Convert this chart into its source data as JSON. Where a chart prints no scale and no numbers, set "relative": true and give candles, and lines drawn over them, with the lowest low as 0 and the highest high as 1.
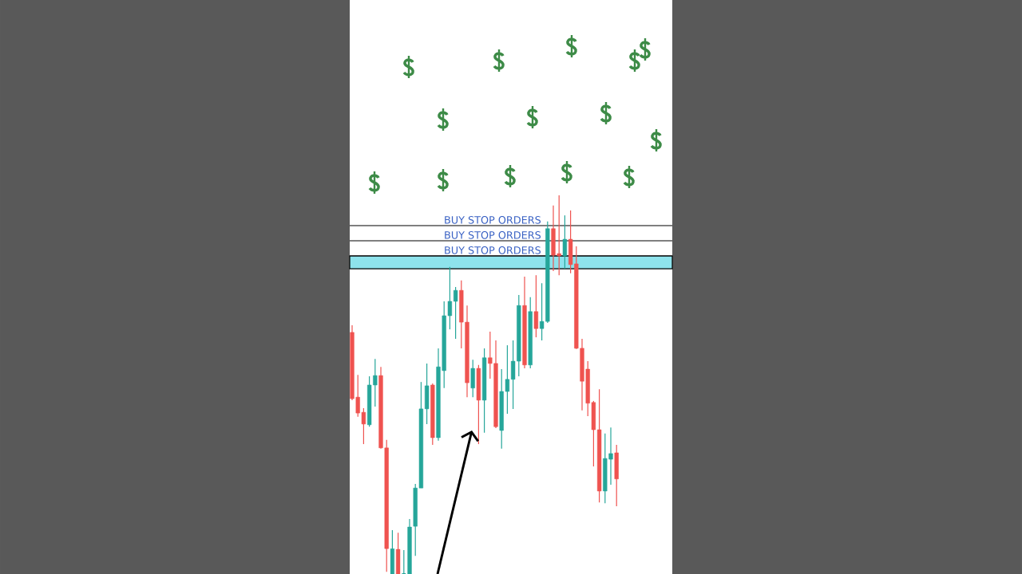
{
  "chart_data": {
    "type": "candlestick",
    "relative": true,
    "categories": [
      null,
      null,
      null,
      null,
      null,
      null,
      null,
      null,
      null,
      null,
      null,
      null,
      null,
      null,
      null,
      null,
      null,
      null,
      null,
      null,
      null,
      null,
      null,
      null,
      null,
      null,
      null,
      null,
      null,
      null,
      null,
      null,
      null,
      null,
      null,
      null,
      null,
      null,
      null,
      null,
      null,
      null,
      null,
      null,
      null,
      null,
      null
    ],
    "ohlc": [
      [
        0.638,
        0.657,
        0.459,
        0.463
      ],
      [
        0.467,
        0.526,
        0.415,
        0.425
      ],
      [
        0.427,
        0.438,
        0.343,
        0.396
      ],
      [
        0.394,
        0.522,
        0.389,
        0.499
      ],
      [
        0.499,
        0.568,
        0.442,
        0.524
      ],
      [
        0.524,
        0.547,
        0.331,
        0.333
      ],
      [
        0.333,
        0.354,
        0.006,
        0.067
      ],
      [
        0,
        0.116,
        0,
        0.067
      ],
      [
        0.065,
        0.109,
        0,
        0
      ],
      [
        0,
        0.063,
        0,
        0
      ],
      [
        0,
        0.145,
        0,
        0.124
      ],
      [
        0.126,
        0.238,
        0.048,
        0.227
      ],
      [
        0.227,
        0.507,
        0.227,
        0.436
      ],
      [
        0.436,
        0.556,
        0.396,
        0.497
      ],
      [
        0.499,
        0.503,
        0.341,
        0.36
      ],
      [
        0.36,
        0.596,
        0.352,
        0.547
      ],
      [
        0.537,
        0.72,
        0.491,
        0.682
      ],
      [
        0.682,
        0.811,
        0.646,
        0.72
      ],
      [
        0.72,
        0.758,
        0.621,
        0.749
      ],
      [
        0.749,
        0.775,
        0.596,
        0.665
      ],
      [
        0.665,
        0.709,
        0.467,
        0.505
      ],
      [
        0.491,
        0.566,
        0.467,
        0.543
      ],
      [
        0.543,
        0.552,
        0.343,
        0.459
      ],
      [
        0.459,
        0.596,
        0.373,
        0.571
      ],
      [
        0.571,
        0.64,
        0.516,
        0.556
      ],
      [
        0.556,
        0.617,
        0.385,
        0.389
      ],
      [
        0.379,
        0.541,
        0.331,
        0.482
      ],
      [
        0.482,
        0.604,
        0.423,
        0.514
      ],
      [
        0.514,
        0.617,
        0.436,
        0.562
      ],
      [
        0.562,
        0.737,
        0.522,
        0.709
      ],
      [
        0.709,
        0.785,
        0.543,
        0.552
      ],
      [
        0.552,
        0.731,
        0.543,
        0.693
      ],
      [
        0.693,
        0.789,
        0.625,
        0.648
      ],
      [
        0.648,
        0.768,
        0.617,
        0.667
      ],
      [
        0.667,
        0.931,
        0.663,
        0.912
      ],
      [
        0.912,
        0.973,
        0.8,
        0.842
      ],
      [
        0.846,
        1,
        0.789,
        0.84
      ],
      [
        0.84,
        0.947,
        0.806,
        0.884
      ],
      [
        0.884,
        0.96,
        0.794,
        0.817
      ],
      [
        0.819,
        0.865,
        0.594,
        0.596
      ],
      [
        0.596,
        0.621,
        0.432,
        0.509
      ],
      [
        0.541,
        0.562,
        0.417,
        0.451
      ],
      [
        0.453,
        0.457,
        0.284,
        0.381
      ],
      [
        0.381,
        0.488,
        0.189,
        0.219
      ],
      [
        0.219,
        0.371,
        0.187,
        0.305
      ],
      [
        0.303,
        0.387,
        0.236,
        0.318
      ],
      [
        0.32,
        0.341,
        0.179,
        0.251
      ]
    ],
    "colors": [
      "#ef5350",
      "#ef5350",
      "#ef5350",
      "#26a69a",
      "#26a69a",
      "#ef5350",
      "#ef5350",
      "#26a69a",
      "#ef5350",
      "#26a69a",
      "#26a69a",
      "#26a69a",
      "#26a69a",
      "#26a69a",
      "#ef5350",
      "#26a69a",
      "#26a69a",
      "#26a69a",
      "#26a69a",
      "#ef5350",
      "#ef5350",
      "#26a69a",
      "#ef5350",
      "#26a69a",
      "#ef5350",
      "#ef5350",
      "#26a69a",
      "#26a69a",
      "#26a69a",
      "#26a69a",
      "#ef5350",
      "#26a69a",
      "#ef5350",
      "#26a69a",
      "#26a69a",
      "#ef5350",
      "#ef5350",
      "#26a69a",
      "#ef5350",
      "#ef5350",
      "#ef5350",
      "#ef5350",
      "#ef5350",
      "#ef5350",
      "#26a69a",
      "#26a69a",
      "#ef5350"
    ],
    "ref_lines": [
      {
        "axis": "y",
        "value": 0.92,
        "label": "BUY STOP ORDERS",
        "color": "#000000"
      },
      {
        "axis": "y",
        "value": 0.88,
        "label": "BUY STOP ORDERS",
        "color": "#000000"
      },
      {
        "axis": "y",
        "value": 0.84,
        "label": "BUY STOP ORDERS",
        "color": "#000000"
      }
    ],
    "bands": [
      {
        "axis": "y",
        "from": 0.806,
        "to": 0.84,
        "color": "#8ee3ec"
      }
    ]
  }
}
